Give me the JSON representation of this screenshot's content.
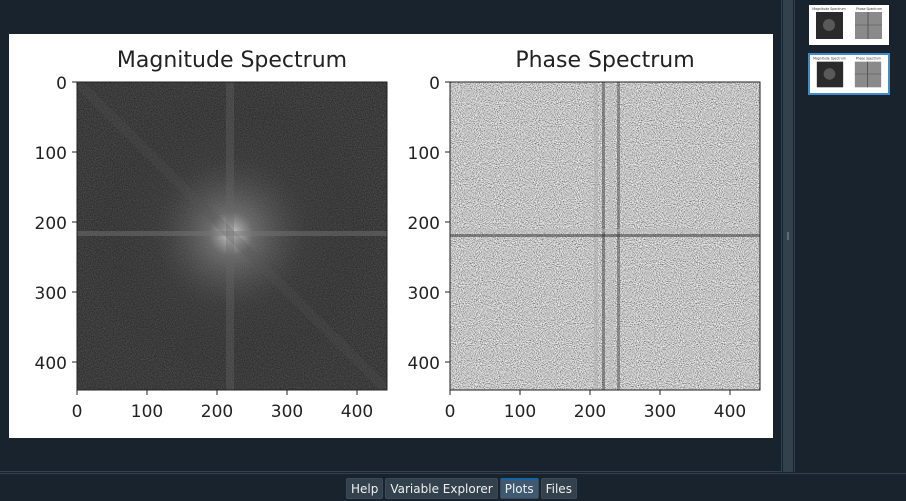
{
  "plots": [
    {
      "title": "Magnitude Spectrum",
      "x_ticks": [
        "0",
        "100",
        "200",
        "300",
        "400"
      ],
      "y_ticks": [
        "0",
        "100",
        "200",
        "300",
        "400"
      ]
    },
    {
      "title": "Phase Spectrum",
      "x_ticks": [
        "0",
        "100",
        "200",
        "300",
        "400"
      ],
      "y_ticks": [
        "0",
        "100",
        "200",
        "300",
        "400"
      ]
    }
  ],
  "thumbnails": [
    {
      "titles": [
        "Magnitude Spectrum",
        "Phase Spectrum"
      ],
      "selected": false
    },
    {
      "titles": [
        "Magnitude Spectrum",
        "Phase Spectrum"
      ],
      "selected": true
    }
  ],
  "tabs": [
    {
      "label": "Help",
      "active": false
    },
    {
      "label": "Variable Explorer",
      "active": false
    },
    {
      "label": "Plots",
      "active": true
    },
    {
      "label": "Files",
      "active": false
    }
  ],
  "colors": {
    "background": "#19232d",
    "panel_border": "#32414b",
    "tab_bg": "#32414b",
    "tab_active_bg": "#3f5a70",
    "selection": "#3f8cc8"
  }
}
